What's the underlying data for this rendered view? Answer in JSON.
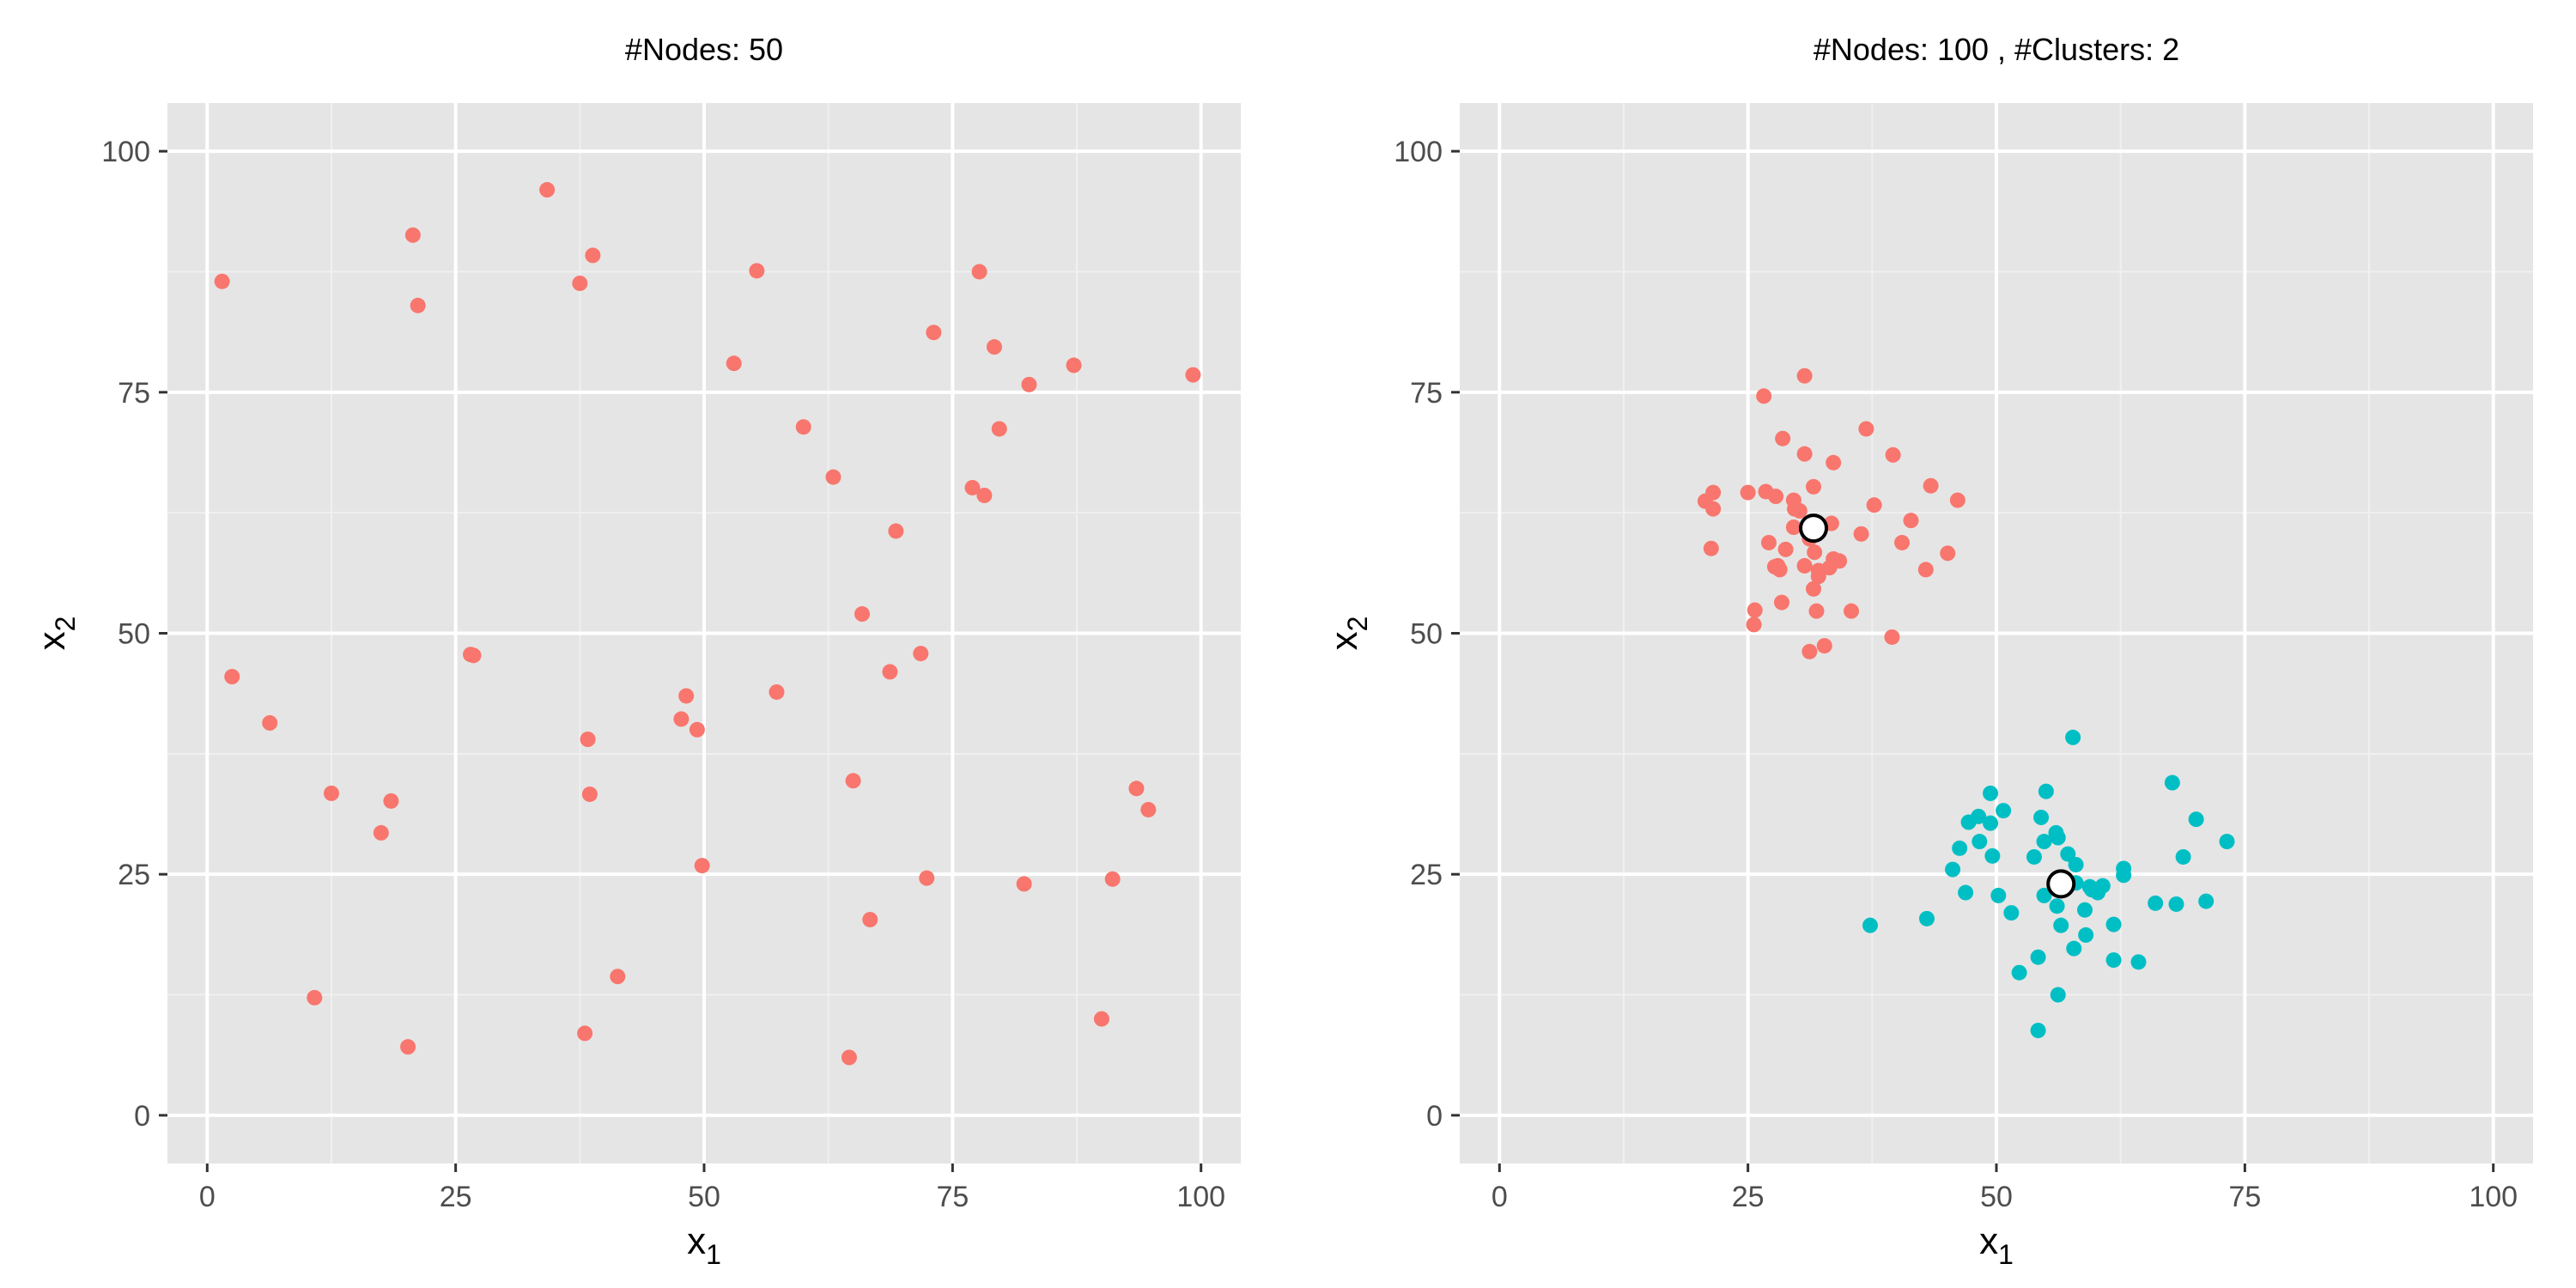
{
  "chart_data": [
    {
      "type": "scatter",
      "title": "#Nodes: 50",
      "xlabel": "x",
      "xlabel_sub": "1",
      "ylabel": "x",
      "ylabel_sub": "2",
      "xlim": [
        -4,
        104
      ],
      "ylim": [
        -5,
        105
      ],
      "xticks": [
        0,
        25,
        50,
        75,
        100
      ],
      "yticks": [
        0,
        25,
        50,
        75,
        100
      ],
      "grid": true,
      "series": [
        {
          "color": "#F8766D",
          "points": [
            [
              1.5,
              86.5
            ],
            [
              20.7,
              91.3
            ],
            [
              21.2,
              84.0
            ],
            [
              34.2,
              96.0
            ],
            [
              38.8,
              89.2
            ],
            [
              37.5,
              86.3
            ],
            [
              55.3,
              87.6
            ],
            [
              53.0,
              78.0
            ],
            [
              73.1,
              81.2
            ],
            [
              77.7,
              87.5
            ],
            [
              79.2,
              79.7
            ],
            [
              82.7,
              75.8
            ],
            [
              87.2,
              77.8
            ],
            [
              99.2,
              76.8
            ],
            [
              60.0,
              71.4
            ],
            [
              63.0,
              66.2
            ],
            [
              79.7,
              71.2
            ],
            [
              77.0,
              65.1
            ],
            [
              78.2,
              64.3
            ],
            [
              69.3,
              60.6
            ],
            [
              26.5,
              47.8
            ],
            [
              26.8,
              47.7
            ],
            [
              2.5,
              45.5
            ],
            [
              6.3,
              40.7
            ],
            [
              65.9,
              52.0
            ],
            [
              71.8,
              47.9
            ],
            [
              68.7,
              46.0
            ],
            [
              57.3,
              43.9
            ],
            [
              48.2,
              43.5
            ],
            [
              47.7,
              41.1
            ],
            [
              49.3,
              40.0
            ],
            [
              38.3,
              39.0
            ],
            [
              12.5,
              33.4
            ],
            [
              18.5,
              32.6
            ],
            [
              17.5,
              29.3
            ],
            [
              38.5,
              33.3
            ],
            [
              65.0,
              34.7
            ],
            [
              93.5,
              33.9
            ],
            [
              94.7,
              31.7
            ],
            [
              49.8,
              25.9
            ],
            [
              72.4,
              24.6
            ],
            [
              82.2,
              24.0
            ],
            [
              91.1,
              24.5
            ],
            [
              66.7,
              20.3
            ],
            [
              41.3,
              14.4
            ],
            [
              10.8,
              12.2
            ],
            [
              38.0,
              8.5
            ],
            [
              20.2,
              7.1
            ],
            [
              64.6,
              6.0
            ],
            [
              90.0,
              10.0
            ]
          ]
        }
      ]
    },
    {
      "type": "scatter",
      "title": "#Nodes: 100 , #Clusters: 2",
      "xlabel": "x",
      "xlabel_sub": "1",
      "ylabel": "x",
      "ylabel_sub": "2",
      "xlim": [
        -4,
        104
      ],
      "ylim": [
        -5,
        105
      ],
      "xticks": [
        0,
        25,
        50,
        75,
        100
      ],
      "yticks": [
        0,
        25,
        50,
        75,
        100
      ],
      "grid": true,
      "series": [
        {
          "color": "#F8766D",
          "points": [
            [
              30.7,
              76.7
            ],
            [
              26.6,
              74.6
            ],
            [
              36.9,
              71.2
            ],
            [
              28.5,
              70.2
            ],
            [
              39.6,
              68.5
            ],
            [
              30.7,
              68.6
            ],
            [
              33.6,
              67.7
            ],
            [
              43.4,
              65.3
            ],
            [
              31.6,
              65.2
            ],
            [
              26.8,
              64.7
            ],
            [
              25.0,
              64.6
            ],
            [
              27.8,
              64.2
            ],
            [
              21.5,
              64.6
            ],
            [
              20.7,
              63.7
            ],
            [
              29.6,
              63.8
            ],
            [
              37.7,
              63.3
            ],
            [
              46.1,
              63.8
            ],
            [
              21.5,
              62.9
            ],
            [
              29.7,
              62.9
            ],
            [
              29.6,
              61.0
            ],
            [
              41.4,
              61.7
            ],
            [
              36.4,
              60.3
            ],
            [
              40.5,
              59.4
            ],
            [
              27.1,
              59.4
            ],
            [
              21.3,
              58.8
            ],
            [
              28.8,
              58.7
            ],
            [
              31.7,
              58.4
            ],
            [
              45.1,
              58.3
            ],
            [
              33.6,
              57.7
            ],
            [
              30.7,
              57.0
            ],
            [
              33.2,
              56.8
            ],
            [
              27.7,
              56.9
            ],
            [
              28.2,
              56.6
            ],
            [
              42.9,
              56.6
            ],
            [
              32.1,
              55.9
            ],
            [
              31.6,
              54.6
            ],
            [
              28.4,
              53.2
            ],
            [
              25.7,
              52.4
            ],
            [
              35.4,
              52.3
            ],
            [
              31.9,
              52.3
            ],
            [
              25.6,
              50.9
            ],
            [
              39.5,
              49.6
            ],
            [
              32.7,
              48.7
            ],
            [
              31.2,
              48.1
            ],
            [
              32.1,
              56.5
            ],
            [
              34.2,
              57.5
            ],
            [
              30.2,
              62.7
            ],
            [
              28.0,
              57.0
            ],
            [
              33.4,
              61.4
            ],
            [
              31.2,
              59.8
            ]
          ]
        },
        {
          "color": "#00BFC4",
          "points": [
            [
              57.7,
              39.2
            ],
            [
              67.7,
              34.5
            ],
            [
              49.4,
              33.4
            ],
            [
              55.0,
              33.6
            ],
            [
              50.7,
              31.6
            ],
            [
              48.2,
              31.0
            ],
            [
              47.2,
              30.4
            ],
            [
              54.5,
              30.9
            ],
            [
              70.1,
              30.7
            ],
            [
              49.4,
              30.3
            ],
            [
              56.0,
              29.3
            ],
            [
              56.2,
              28.8
            ],
            [
              73.2,
              28.4
            ],
            [
              54.8,
              28.4
            ],
            [
              48.3,
              28.4
            ],
            [
              46.3,
              27.7
            ],
            [
              53.8,
              26.8
            ],
            [
              57.2,
              27.1
            ],
            [
              68.8,
              26.8
            ],
            [
              49.6,
              26.9
            ],
            [
              45.6,
              25.5
            ],
            [
              62.8,
              25.6
            ],
            [
              62.8,
              24.9
            ],
            [
              58.0,
              24.1
            ],
            [
              60.7,
              23.8
            ],
            [
              59.6,
              23.4
            ],
            [
              60.2,
              23.1
            ],
            [
              50.2,
              22.8
            ],
            [
              54.8,
              22.8
            ],
            [
              46.9,
              23.1
            ],
            [
              71.1,
              22.2
            ],
            [
              56.1,
              21.7
            ],
            [
              66.0,
              22.0
            ],
            [
              68.1,
              21.9
            ],
            [
              51.5,
              21.0
            ],
            [
              58.9,
              21.3
            ],
            [
              43.0,
              20.4
            ],
            [
              37.3,
              19.7
            ],
            [
              56.5,
              19.7
            ],
            [
              61.8,
              19.8
            ],
            [
              59.0,
              18.7
            ],
            [
              57.8,
              17.3
            ],
            [
              54.2,
              16.4
            ],
            [
              61.8,
              16.1
            ],
            [
              64.3,
              15.9
            ],
            [
              52.3,
              14.8
            ],
            [
              56.2,
              12.5
            ],
            [
              54.2,
              8.8
            ],
            [
              59.4,
              23.7
            ],
            [
              58.0,
              26.0
            ]
          ]
        }
      ],
      "centroids": {
        "fill": "#FFFFFF",
        "stroke": "#000000",
        "points": [
          [
            31.6,
            60.9
          ],
          [
            56.5,
            24.0
          ]
        ]
      }
    }
  ]
}
